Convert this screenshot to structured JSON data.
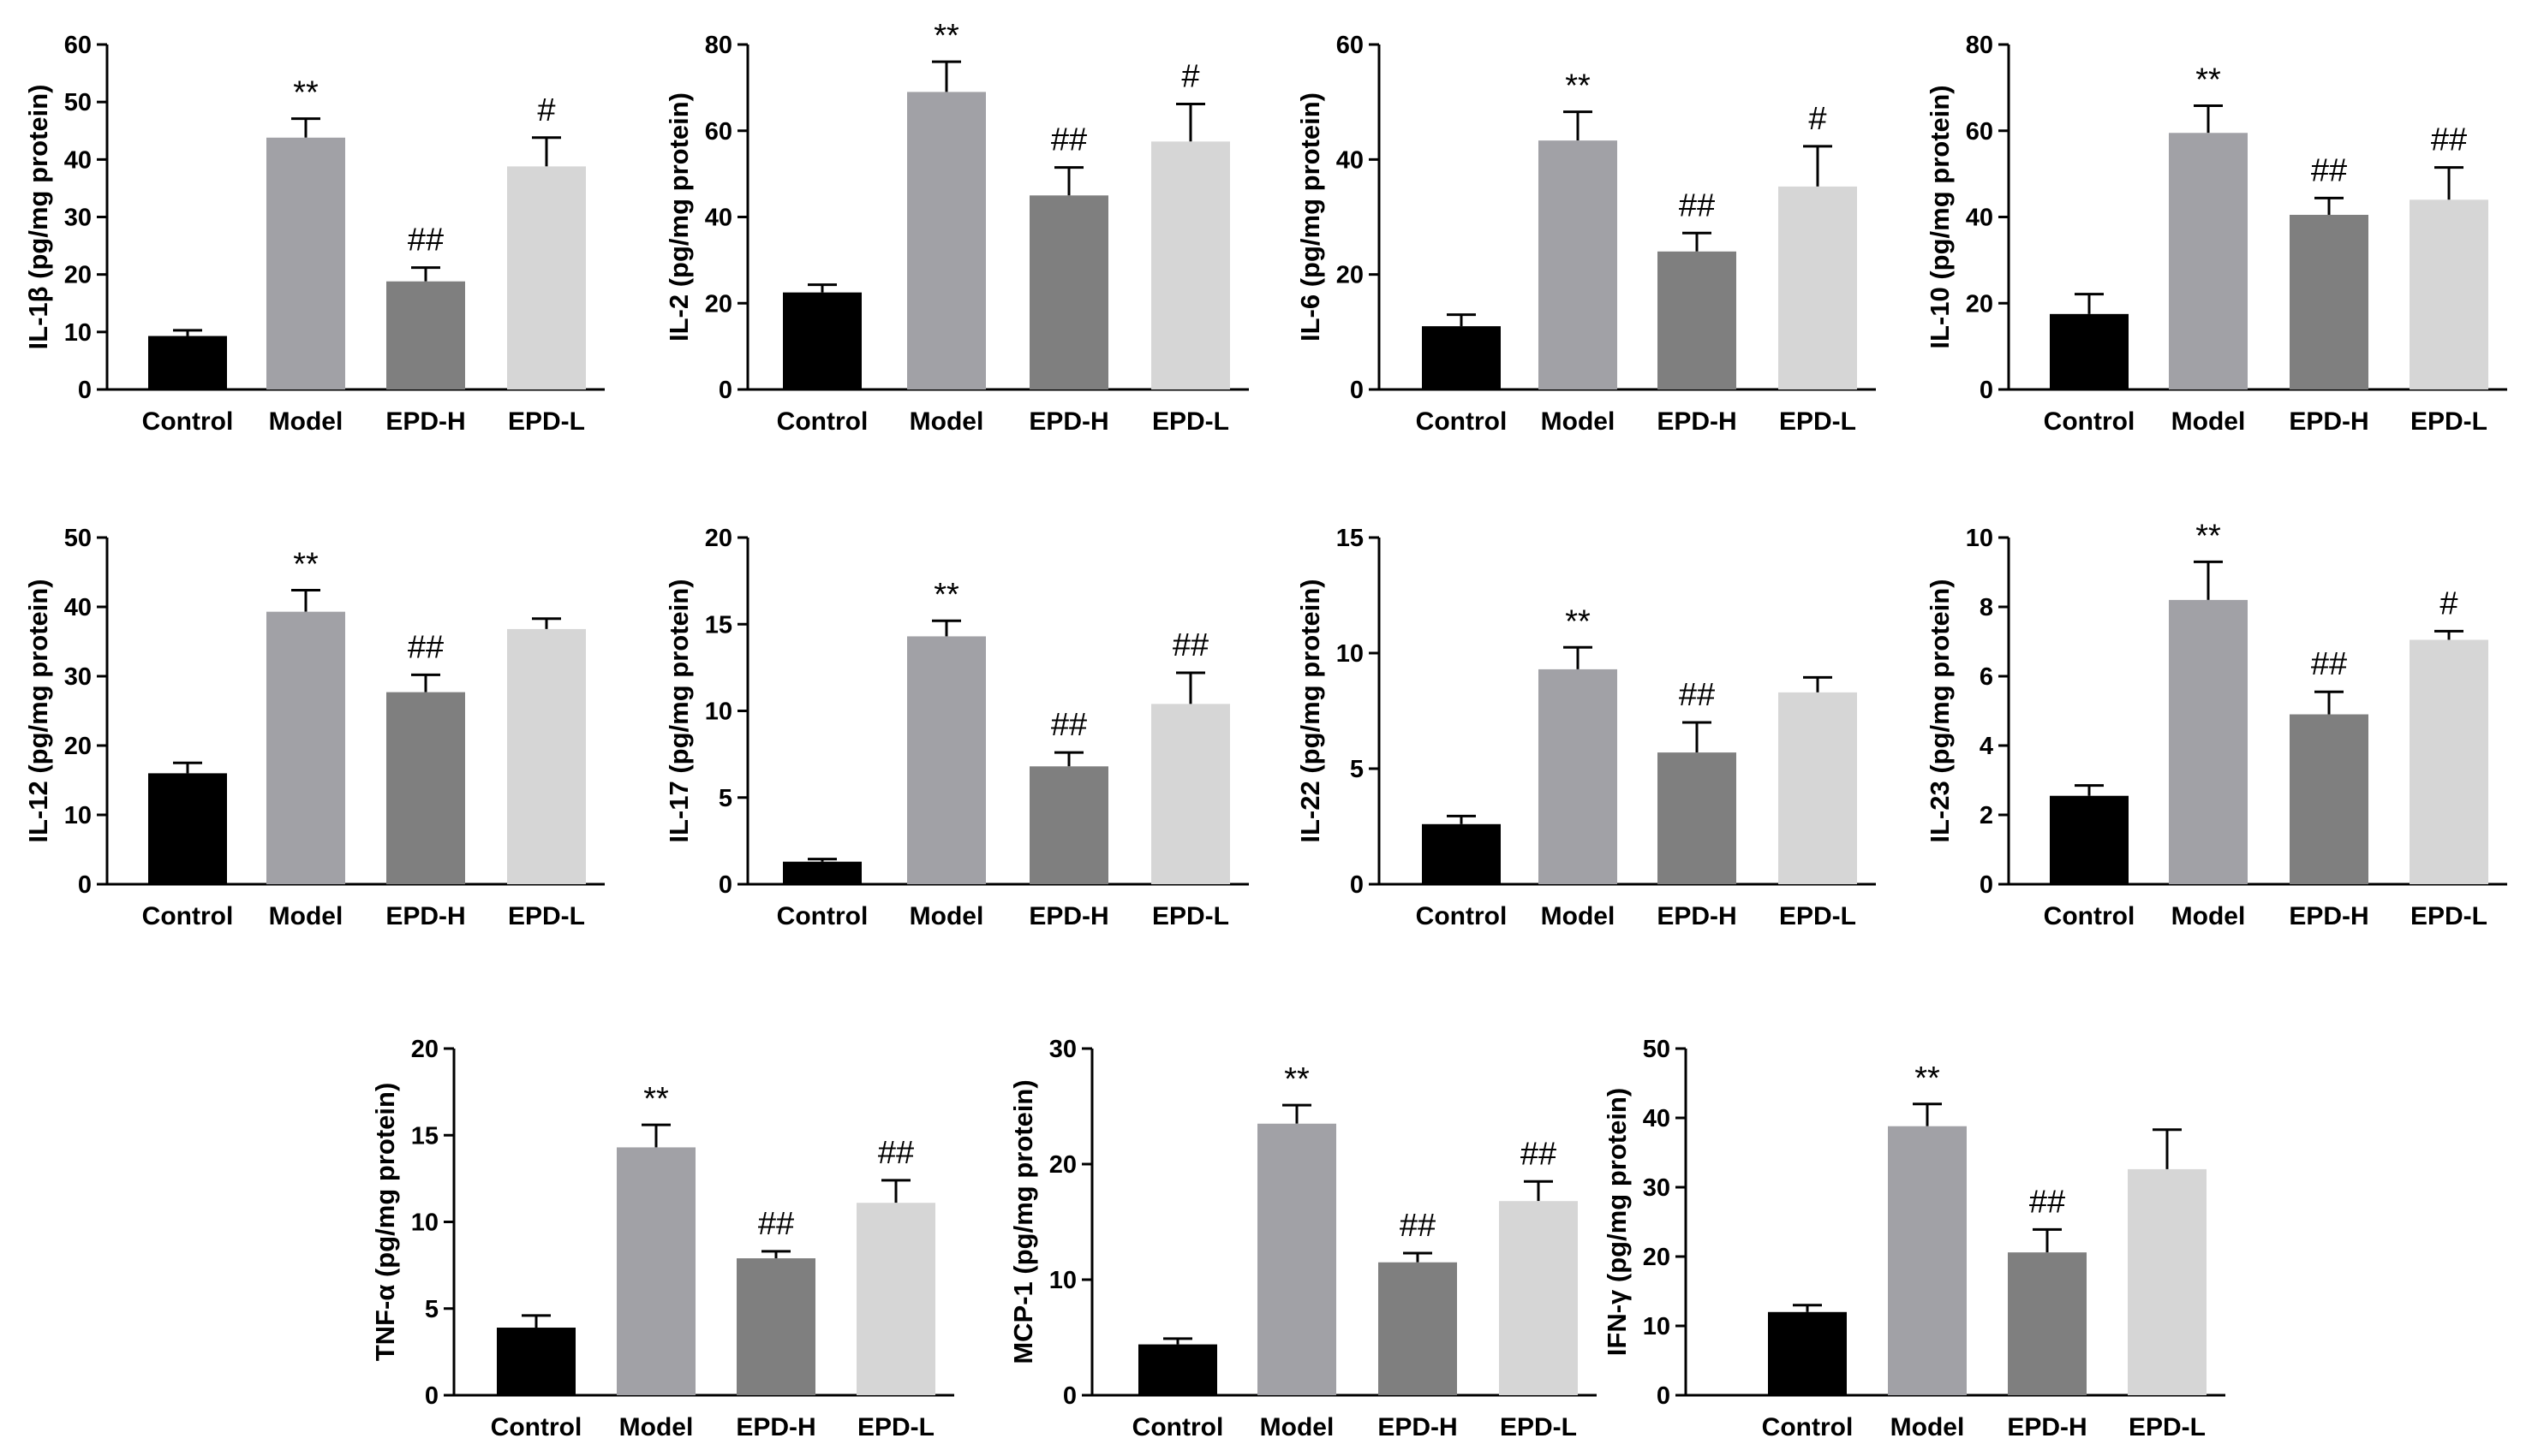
{
  "colors": {
    "Control": "#000000",
    "Model": "#a1a1a6",
    "EPD-H": "#7f7f7f",
    "EPD-L": "#d6d6d6",
    "axis": "#000000"
  },
  "chart_data": [
    {
      "id": "il1b",
      "type": "bar",
      "ylabel": "IL-1β (pg/mg protein)",
      "categories": [
        "Control",
        "Model",
        "EPD-H",
        "EPD-L"
      ],
      "values": [
        9.3,
        43.8,
        18.8,
        38.8
      ],
      "errors": [
        1.0,
        3.3,
        2.4,
        5.0
      ],
      "labels": [
        "",
        "**",
        "##",
        "#"
      ],
      "ylim": [
        0,
        60
      ],
      "yticks": [
        0,
        10,
        20,
        30,
        40,
        50,
        60
      ]
    },
    {
      "id": "il2",
      "type": "bar",
      "ylabel": "IL-2 (pg/mg protein)",
      "categories": [
        "Control",
        "Model",
        "EPD-H",
        "EPD-L"
      ],
      "values": [
        22.5,
        69.0,
        45.0,
        57.5
      ],
      "errors": [
        1.8,
        7.0,
        6.5,
        8.7
      ],
      "labels": [
        "",
        "**",
        "##",
        "#"
      ],
      "ylim": [
        0,
        80
      ],
      "yticks": [
        0,
        20,
        40,
        60,
        80
      ]
    },
    {
      "id": "il6",
      "type": "bar",
      "ylabel": "IL-6 (pg/mg protein)",
      "categories": [
        "Control",
        "Model",
        "EPD-H",
        "EPD-L"
      ],
      "values": [
        11.0,
        43.3,
        24.0,
        35.3
      ],
      "errors": [
        2.0,
        5.0,
        3.2,
        7.0
      ],
      "labels": [
        "",
        "**",
        "##",
        "#"
      ],
      "ylim": [
        0,
        60
      ],
      "yticks": [
        0,
        20,
        40,
        60
      ]
    },
    {
      "id": "il10",
      "type": "bar",
      "ylabel": "IL-10 (pg/mg protein)",
      "categories": [
        "Control",
        "Model",
        "EPD-H",
        "EPD-L"
      ],
      "values": [
        17.5,
        59.5,
        40.5,
        44.0
      ],
      "errors": [
        4.6,
        6.3,
        3.9,
        7.5
      ],
      "labels": [
        "",
        "**",
        "##",
        "##"
      ],
      "ylim": [
        0,
        80
      ],
      "yticks": [
        0,
        20,
        40,
        60,
        80
      ]
    },
    {
      "id": "il12",
      "type": "bar",
      "ylabel": "IL-12 (pg/mg protein)",
      "categories": [
        "Control",
        "Model",
        "EPD-H",
        "EPD-L"
      ],
      "values": [
        16.0,
        39.3,
        27.7,
        36.8
      ],
      "errors": [
        1.5,
        3.1,
        2.5,
        1.5
      ],
      "labels": [
        "",
        "**",
        "##",
        ""
      ],
      "ylim": [
        0,
        50
      ],
      "yticks": [
        0,
        10,
        20,
        30,
        40,
        50
      ]
    },
    {
      "id": "il17",
      "type": "bar",
      "ylabel": "IL-17 (pg/mg protein)",
      "categories": [
        "Control",
        "Model",
        "EPD-H",
        "EPD-L"
      ],
      "values": [
        1.3,
        14.3,
        6.8,
        10.4
      ],
      "errors": [
        0.15,
        0.9,
        0.8,
        1.8
      ],
      "labels": [
        "",
        "**",
        "##",
        "##"
      ],
      "ylim": [
        0,
        20
      ],
      "yticks": [
        0,
        5,
        10,
        15,
        20
      ]
    },
    {
      "id": "il22",
      "type": "bar",
      "ylabel": "IL-22 (pg/mg protein)",
      "categories": [
        "Control",
        "Model",
        "EPD-H",
        "EPD-L"
      ],
      "values": [
        2.6,
        9.3,
        5.7,
        8.3
      ],
      "errors": [
        0.35,
        0.95,
        1.3,
        0.65
      ],
      "labels": [
        "",
        "**",
        "##",
        ""
      ],
      "ylim": [
        0,
        15
      ],
      "yticks": [
        0,
        5,
        10,
        15
      ]
    },
    {
      "id": "il23",
      "type": "bar",
      "ylabel": "IL-23 (pg/mg protein)",
      "categories": [
        "Control",
        "Model",
        "EPD-H",
        "EPD-L"
      ],
      "values": [
        2.55,
        8.2,
        4.9,
        7.05
      ],
      "errors": [
        0.3,
        1.1,
        0.65,
        0.25
      ],
      "labels": [
        "",
        "**",
        "##",
        "#"
      ],
      "ylim": [
        0,
        10
      ],
      "yticks": [
        0,
        2,
        4,
        6,
        8,
        10
      ]
    },
    {
      "id": "tnfa",
      "type": "bar",
      "ylabel": "TNF-α (pg/mg protein)",
      "categories": [
        "Control",
        "Model",
        "EPD-H",
        "EPD-L"
      ],
      "values": [
        3.9,
        14.3,
        7.9,
        11.1
      ],
      "errors": [
        0.7,
        1.3,
        0.4,
        1.3
      ],
      "labels": [
        "",
        "**",
        "##",
        "##"
      ],
      "ylim": [
        0,
        20
      ],
      "yticks": [
        0,
        5,
        10,
        15,
        20
      ]
    },
    {
      "id": "mcp1",
      "type": "bar",
      "ylabel": "MCP-1 (pg/mg protein)",
      "categories": [
        "Control",
        "Model",
        "EPD-H",
        "EPD-L"
      ],
      "values": [
        4.4,
        23.5,
        11.5,
        16.8
      ],
      "errors": [
        0.5,
        1.6,
        0.8,
        1.7
      ],
      "labels": [
        "",
        "**",
        "##",
        "##"
      ],
      "ylim": [
        0,
        30
      ],
      "yticks": [
        0,
        10,
        20,
        30
      ]
    },
    {
      "id": "ifng",
      "type": "bar",
      "ylabel": "IFN-γ (pg/mg protein)",
      "categories": [
        "Control",
        "Model",
        "EPD-H",
        "EPD-L"
      ],
      "values": [
        12.0,
        38.8,
        20.6,
        32.6
      ],
      "errors": [
        1.0,
        3.2,
        3.3,
        5.7
      ],
      "labels": [
        "",
        "**",
        "##",
        ""
      ],
      "ylim": [
        0,
        50
      ],
      "yticks": [
        0,
        10,
        20,
        30,
        40,
        50
      ]
    }
  ]
}
